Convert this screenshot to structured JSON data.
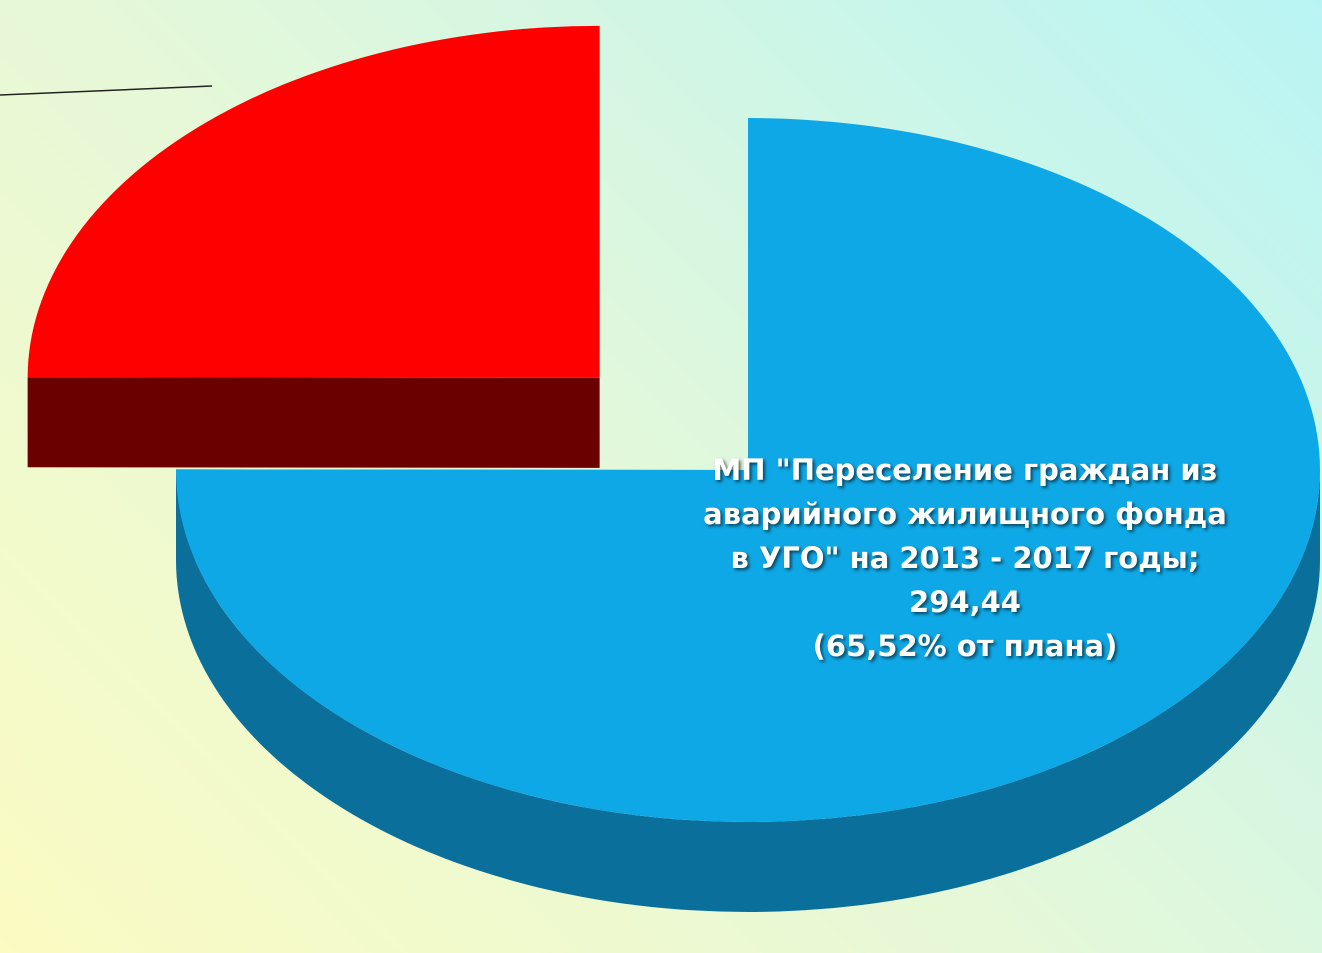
{
  "chart_data": {
    "type": "pie3d",
    "categories": [
      "МП \"Переселение граждан из аварийного жилищного фонда в УГО\" на 2013 - 2017 годы",
      null
    ],
    "label_separator": "; ",
    "values": [
      294.44,
      98
    ],
    "value_labels": [
      "294,44",
      null
    ],
    "plan_labels": [
      "(65,52% от плана)",
      null
    ],
    "colors": [
      "#0fa8e6",
      "#ff0000"
    ],
    "side_colors": [
      "#0b6f9c",
      "#6b0000"
    ]
  }
}
